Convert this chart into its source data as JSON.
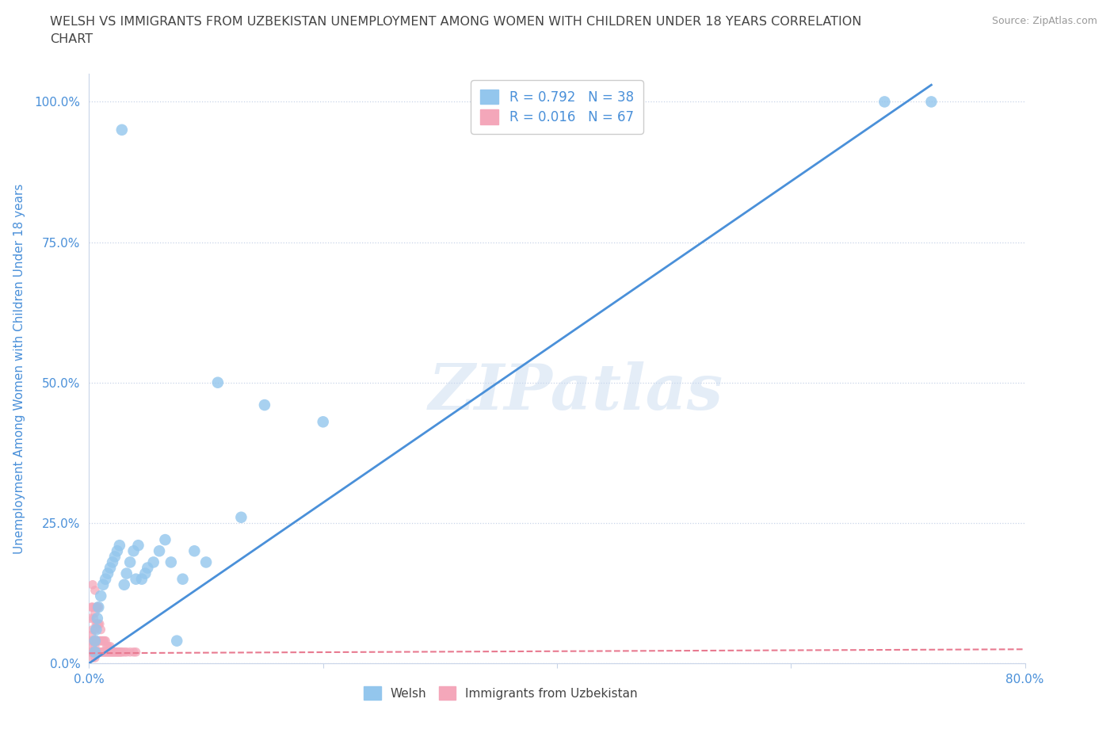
{
  "title_line1": "WELSH VS IMMIGRANTS FROM UZBEKISTAN UNEMPLOYMENT AMONG WOMEN WITH CHILDREN UNDER 18 YEARS CORRELATION",
  "title_line2": "CHART",
  "source": "Source: ZipAtlas.com",
  "ylabel": "Unemployment Among Women with Children Under 18 years",
  "watermark": "ZIPatlas",
  "legend_welsh_R": "R = 0.792",
  "legend_welsh_N": "N = 38",
  "legend_uzbek_R": "R = 0.016",
  "legend_uzbek_N": "N = 67",
  "welsh_color": "#93c6ed",
  "uzbek_color": "#f4a7ba",
  "welsh_line_color": "#4a90d9",
  "uzbek_line_color": "#e87a90",
  "background_color": "#ffffff",
  "grid_color": "#c8d4e8",
  "axis_color": "#4a90d9",
  "label_color": "#444444",
  "welsh_x": [
    0.028,
    0.005,
    0.005,
    0.006,
    0.007,
    0.008,
    0.01,
    0.012,
    0.014,
    0.016,
    0.018,
    0.02,
    0.022,
    0.024,
    0.026,
    0.03,
    0.032,
    0.035,
    0.038,
    0.04,
    0.042,
    0.045,
    0.048,
    0.05,
    0.055,
    0.06,
    0.065,
    0.07,
    0.075,
    0.08,
    0.09,
    0.1,
    0.11,
    0.13,
    0.15,
    0.2,
    0.68,
    0.72
  ],
  "welsh_y": [
    0.95,
    0.02,
    0.04,
    0.06,
    0.08,
    0.1,
    0.12,
    0.14,
    0.15,
    0.16,
    0.17,
    0.18,
    0.19,
    0.2,
    0.21,
    0.14,
    0.16,
    0.18,
    0.2,
    0.15,
    0.21,
    0.15,
    0.16,
    0.17,
    0.18,
    0.2,
    0.22,
    0.18,
    0.04,
    0.15,
    0.2,
    0.18,
    0.5,
    0.26,
    0.46,
    0.43,
    1.0,
    1.0
  ],
  "uzbek_x": [
    0.001,
    0.001,
    0.001,
    0.002,
    0.002,
    0.002,
    0.003,
    0.003,
    0.003,
    0.003,
    0.003,
    0.004,
    0.004,
    0.004,
    0.005,
    0.005,
    0.005,
    0.005,
    0.005,
    0.006,
    0.006,
    0.006,
    0.006,
    0.007,
    0.007,
    0.007,
    0.007,
    0.008,
    0.008,
    0.008,
    0.008,
    0.009,
    0.009,
    0.009,
    0.01,
    0.01,
    0.01,
    0.011,
    0.011,
    0.012,
    0.012,
    0.013,
    0.013,
    0.014,
    0.014,
    0.015,
    0.015,
    0.016,
    0.016,
    0.017,
    0.018,
    0.018,
    0.019,
    0.02,
    0.021,
    0.022,
    0.023,
    0.024,
    0.025,
    0.026,
    0.027,
    0.028,
    0.03,
    0.032,
    0.035,
    0.038,
    0.04
  ],
  "uzbek_y": [
    0.02,
    0.04,
    0.08,
    0.02,
    0.05,
    0.1,
    0.01,
    0.03,
    0.06,
    0.1,
    0.14,
    0.02,
    0.04,
    0.08,
    0.01,
    0.03,
    0.06,
    0.09,
    0.13,
    0.02,
    0.04,
    0.07,
    0.1,
    0.02,
    0.04,
    0.07,
    0.1,
    0.02,
    0.04,
    0.07,
    0.1,
    0.02,
    0.04,
    0.07,
    0.02,
    0.04,
    0.06,
    0.02,
    0.04,
    0.02,
    0.04,
    0.02,
    0.04,
    0.02,
    0.04,
    0.02,
    0.03,
    0.02,
    0.03,
    0.02,
    0.02,
    0.03,
    0.02,
    0.02,
    0.02,
    0.02,
    0.02,
    0.02,
    0.02,
    0.02,
    0.02,
    0.02,
    0.02,
    0.02,
    0.02,
    0.02,
    0.02
  ],
  "welsh_line_x": [
    0.0,
    0.72
  ],
  "welsh_line_y": [
    0.0,
    1.03
  ],
  "uzbek_line_x": [
    0.0,
    0.8
  ],
  "uzbek_line_y": [
    0.018,
    0.025
  ],
  "xlim": [
    0.0,
    0.8
  ],
  "ylim": [
    0.0,
    1.05
  ],
  "yticks": [
    0.0,
    0.25,
    0.5,
    0.75,
    1.0
  ],
  "ytick_labels": [
    "0.0%",
    "25.0%",
    "50.0%",
    "75.0%",
    "100.0%"
  ],
  "xtick_positions": [
    0.0,
    0.2,
    0.4,
    0.6,
    0.8
  ],
  "xtick_visible": [
    0.0,
    0.8
  ]
}
